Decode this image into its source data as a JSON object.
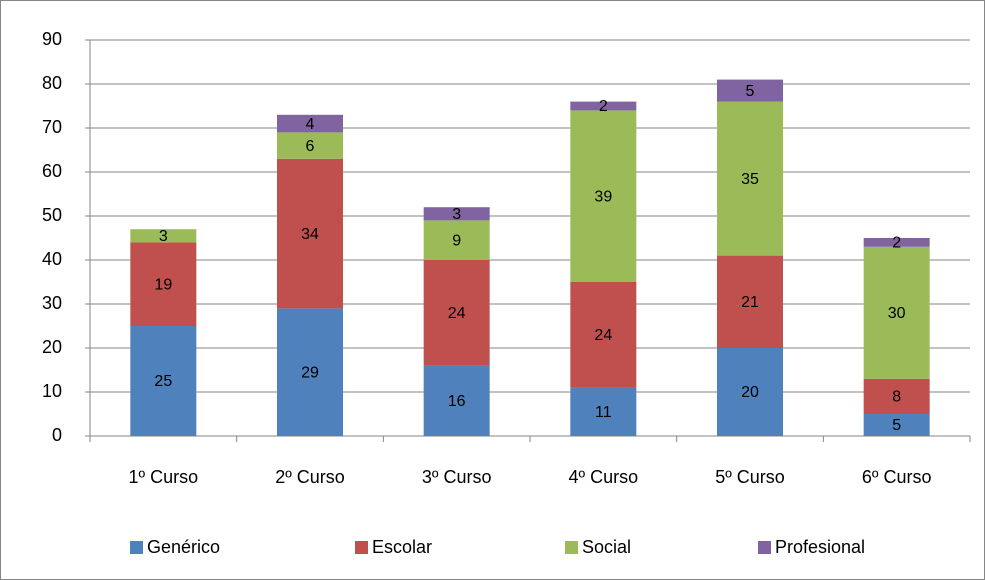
{
  "chart_data": {
    "type": "stacked_bar",
    "categories": [
      "1º Curso",
      "2º Curso",
      "3º Curso",
      "4º Curso",
      "5º Curso",
      "6º Curso"
    ],
    "series": [
      {
        "name": "Genérico",
        "color": "#4f81bd",
        "values": [
          25,
          29,
          16,
          11,
          20,
          5
        ]
      },
      {
        "name": "Escolar",
        "color": "#c0504d",
        "values": [
          19,
          34,
          24,
          24,
          21,
          8
        ]
      },
      {
        "name": "Social",
        "color": "#9bbb59",
        "values": [
          3,
          6,
          9,
          39,
          35,
          30
        ]
      },
      {
        "name": "Profesional",
        "color": "#8064a2",
        "values": [
          null,
          4,
          3,
          2,
          5,
          2
        ]
      }
    ],
    "ylim": [
      0,
      90
    ],
    "yticks": [
      0,
      10,
      20,
      30,
      40,
      50,
      60,
      70,
      80,
      90
    ],
    "grid": true,
    "legend": "bottom"
  }
}
